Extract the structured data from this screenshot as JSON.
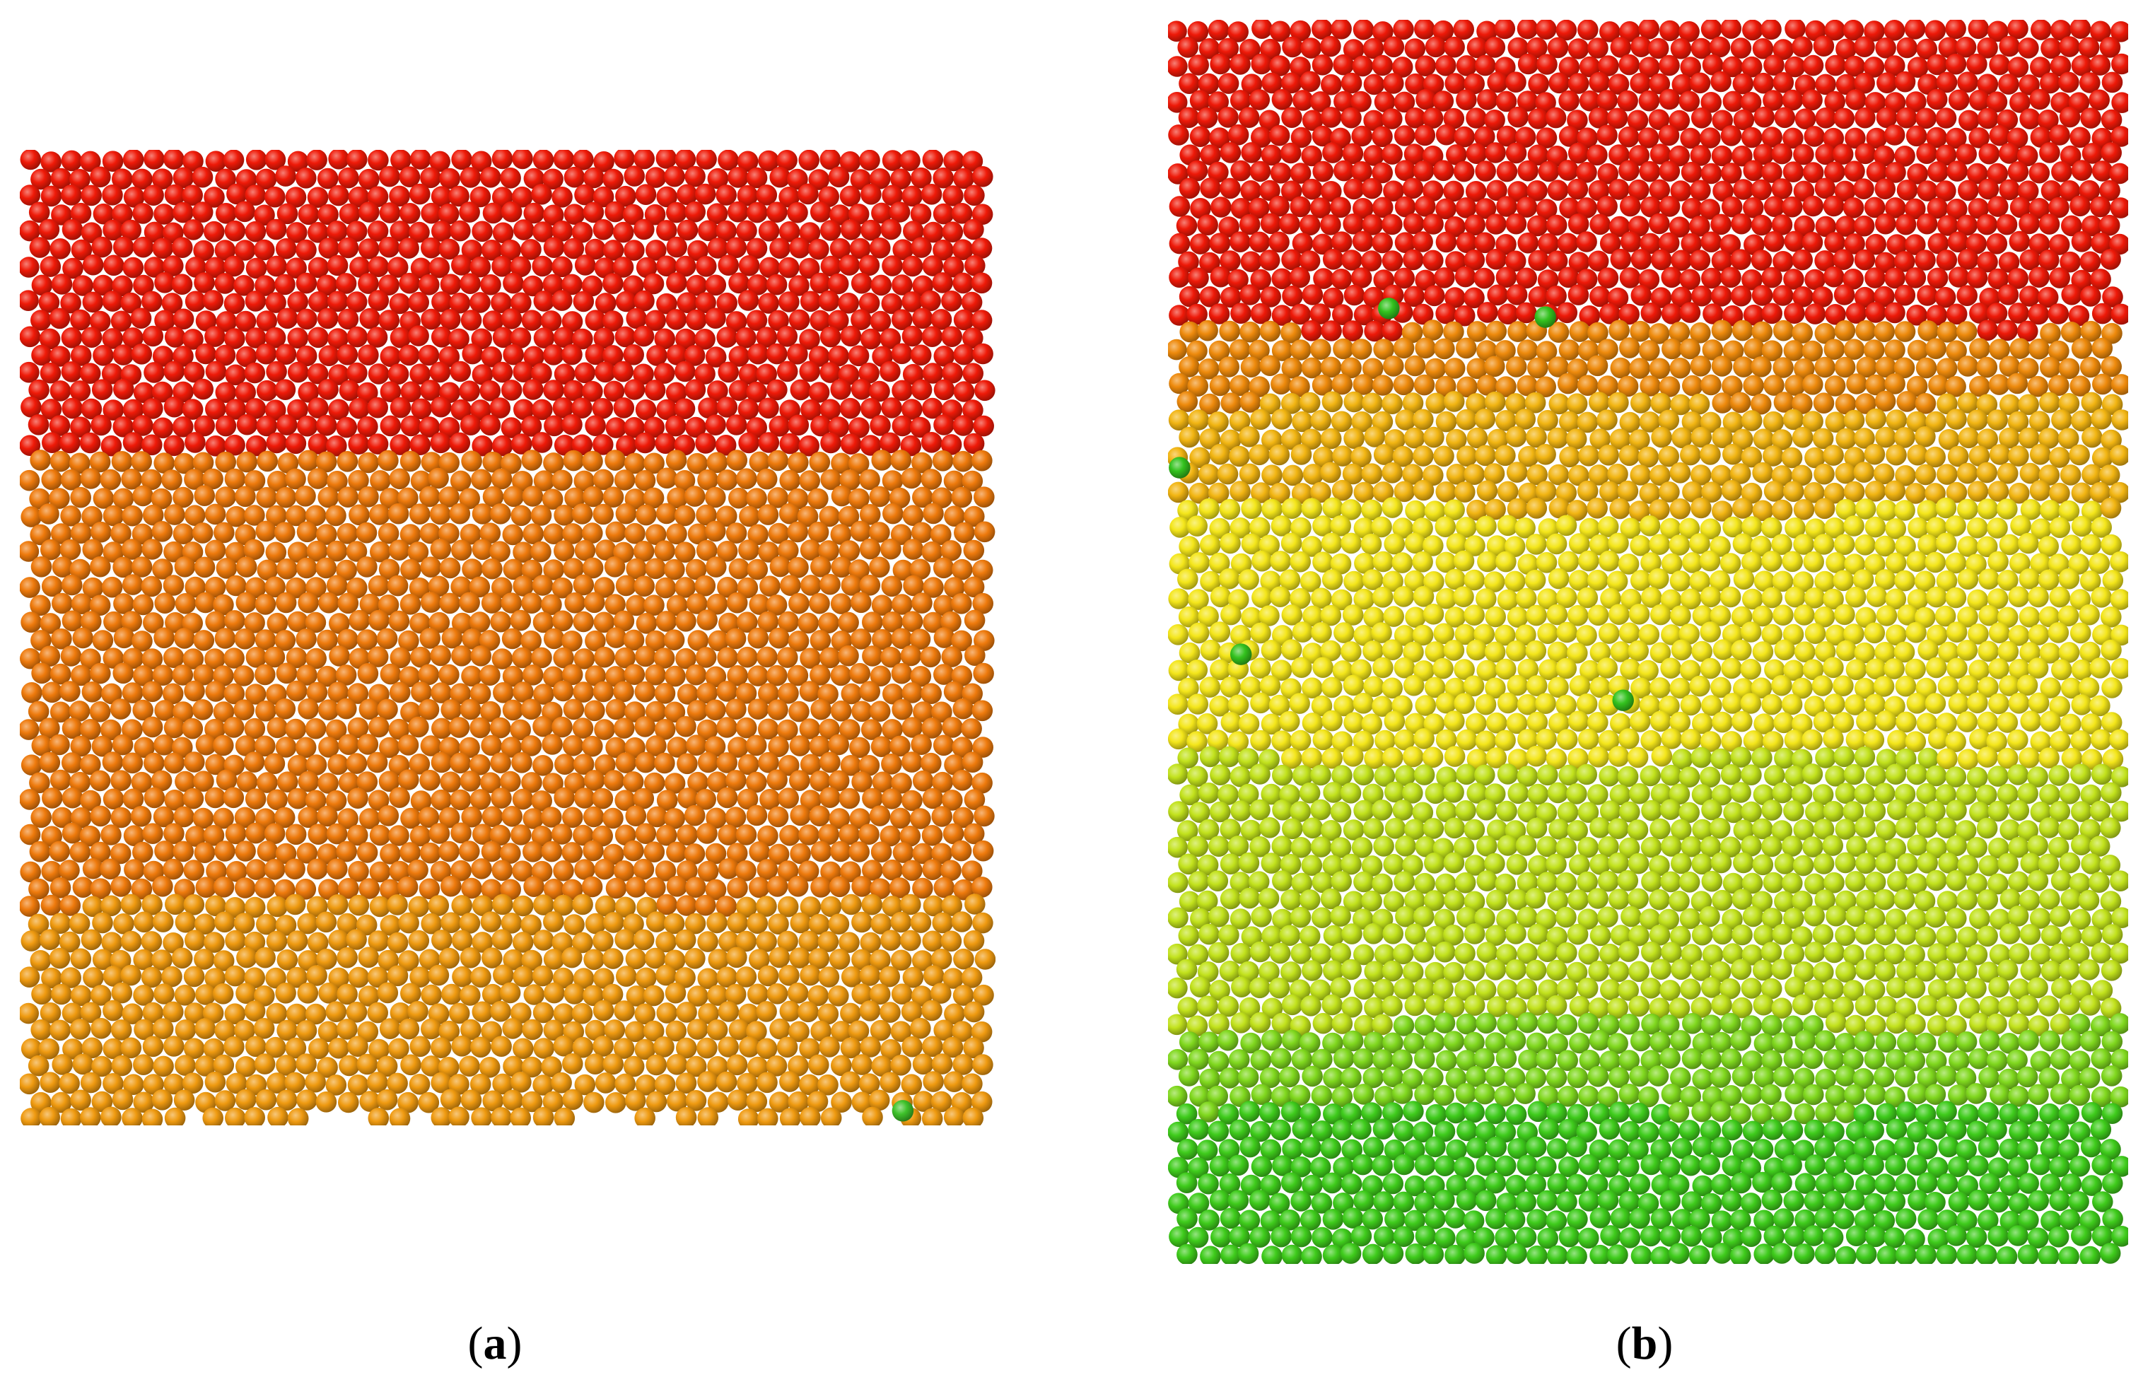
{
  "figure": {
    "panels": [
      {
        "id": "a",
        "label": "a",
        "layers": [
          {
            "color": "#ef1a08",
            "fraction": 0.31
          },
          {
            "color": "#ee7a0c",
            "fraction": 0.46
          },
          {
            "color": "#ef9a10",
            "fraction": 0.23
          }
        ],
        "outlier_particles": [
          {
            "color": "#3ec22a",
            "fx": 0.905,
            "fy": 0.985
          }
        ]
      },
      {
        "id": "b",
        "label": "b",
        "layers": [
          {
            "color": "#ee1908",
            "fraction": 0.245
          },
          {
            "color": "#ee8a0c",
            "fraction": 0.06
          },
          {
            "color": "#f2b512",
            "fraction": 0.09
          },
          {
            "color": "#f4e61a",
            "fraction": 0.2
          },
          {
            "color": "#c2e21c",
            "fraction": 0.21
          },
          {
            "color": "#80d81e",
            "fraction": 0.07
          },
          {
            "color": "#3fcc1c",
            "fraction": 0.125
          }
        ],
        "outlier_particles": [
          {
            "color": "#33c21e",
            "fx": 0.23,
            "fy": 0.232
          },
          {
            "color": "#33c21e",
            "fx": 0.393,
            "fy": 0.239
          },
          {
            "color": "#33c21e",
            "fx": 0.012,
            "fy": 0.36
          },
          {
            "color": "#33c21e",
            "fx": 0.076,
            "fy": 0.51
          },
          {
            "color": "#33c21e",
            "fx": 0.474,
            "fy": 0.547
          }
        ]
      }
    ],
    "caption_a": "a",
    "caption_b": "b"
  }
}
